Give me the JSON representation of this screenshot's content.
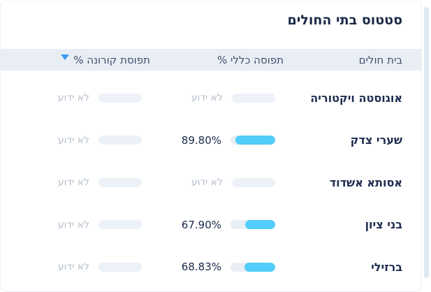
{
  "title": "סטטוס בתי החולים",
  "table": {
    "columns": {
      "hospital": "בית חולים",
      "general": "תפוסה כללי %",
      "corona": "תפוסת קורונה %"
    },
    "sort_icon": "triangle-down",
    "unknown_label": "לא ידוע",
    "rows": [
      {
        "hospital": "אוגוסטה ויקטוריה",
        "general": {
          "known": false
        },
        "corona": {
          "known": false
        }
      },
      {
        "hospital": "שערי צדק",
        "general": {
          "known": true,
          "value": "89.80%",
          "percent": 89.8
        },
        "corona": {
          "known": false
        }
      },
      {
        "hospital": "אסותא אשדוד",
        "general": {
          "known": false
        },
        "corona": {
          "known": false
        }
      },
      {
        "hospital": "בני ציון",
        "general": {
          "known": true,
          "value": "67.90%",
          "percent": 67.9
        },
        "corona": {
          "known": false
        }
      },
      {
        "hospital": "ברזילי",
        "general": {
          "known": true,
          "value": "68.83%",
          "percent": 68.83
        },
        "corona": {
          "known": false
        }
      }
    ]
  },
  "colors": {
    "bar_fill": "#53cdf9",
    "bar_track": "#e9eef5",
    "unknown_pill": "#edf1f8",
    "header_background": "#e8eef4",
    "sort_triangle": "#3b9af4",
    "scroll_strip": "#dfe9f3",
    "title_text": "#1b2947",
    "unknown_text": "#b5becb"
  }
}
